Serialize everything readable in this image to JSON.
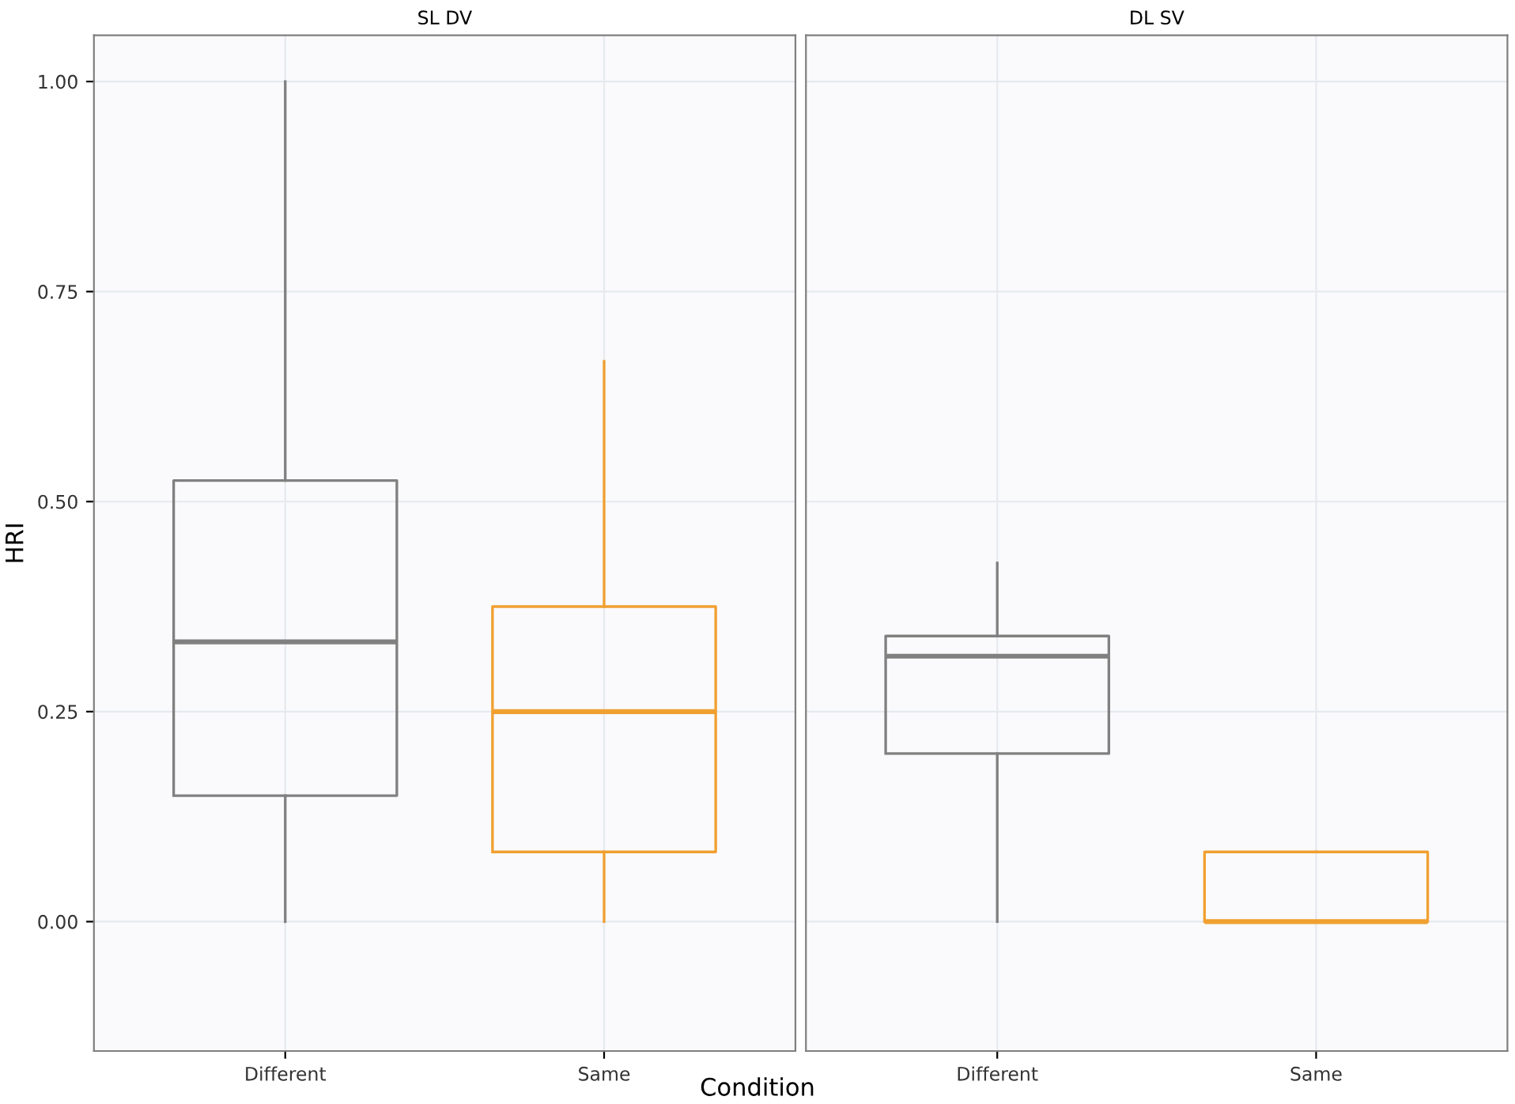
{
  "chart_data": [
    {
      "type": "box",
      "title": "SL DV",
      "ylabel": "HRI",
      "xlabel": "Condition",
      "categories": [
        "Different",
        "Same"
      ],
      "colors": [
        "#808080",
        "#f0a030"
      ],
      "boxes": [
        {
          "low": 0,
          "q1": 0.15,
          "median": 0.333,
          "q3": 0.525,
          "high": 1.0
        },
        {
          "low": 0,
          "q1": 0.083,
          "median": 0.25,
          "q3": 0.375,
          "high": 0.667
        }
      ],
      "ylim": [
        -0.154,
        1.055
      ],
      "yticks": [
        {
          "value": 0,
          "label": "0.00"
        },
        {
          "value": 0.25,
          "label": "0.25"
        },
        {
          "value": 0.5,
          "label": "0.50"
        },
        {
          "value": 0.75,
          "label": "0.75"
        },
        {
          "value": 1,
          "label": "1.00"
        }
      ],
      "grid": true
    },
    {
      "type": "box",
      "title": "DL SV",
      "categories": [
        "Different",
        "Same"
      ],
      "colors": [
        "#808080",
        "#f0a030"
      ],
      "boxes": [
        {
          "low": 0,
          "q1": 0.2,
          "median": 0.316,
          "q3": 0.34,
          "high": 0.427
        },
        {
          "low": 0,
          "q1": 0,
          "median": 0,
          "q3": 0.083,
          "high": 0.083
        }
      ],
      "ylim": [
        -0.154,
        1.055
      ],
      "yticks": [
        {
          "value": 0,
          "label": null
        },
        {
          "value": 0.25,
          "label": null
        },
        {
          "value": 0.5,
          "label": null
        },
        {
          "value": 0.75,
          "label": null
        },
        {
          "value": 1,
          "label": null
        }
      ],
      "grid": true,
      "tick_labels": "x"
    }
  ]
}
